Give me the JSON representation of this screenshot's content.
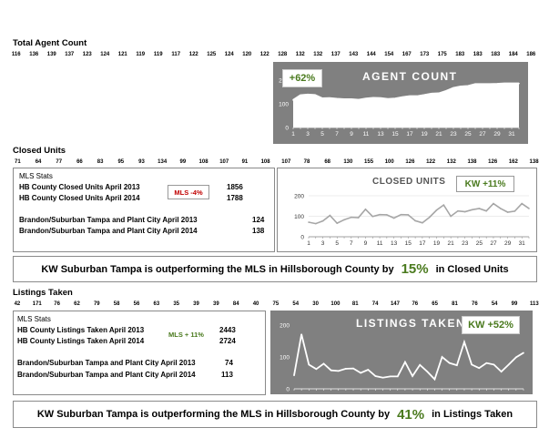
{
  "agent": {
    "title": "Total Agent Count",
    "numbers": [
      "116",
      "136",
      "139",
      "137",
      "123",
      "124",
      "121",
      "119",
      "119",
      "117",
      "122",
      "125",
      "124",
      "120",
      "122",
      "128",
      "132",
      "132",
      "137",
      "143",
      "144",
      "154",
      "167",
      "173",
      "175",
      "183",
      "183",
      "183",
      "184",
      "186"
    ]
  },
  "closed": {
    "title": "Closed Units",
    "numbers": [
      "71",
      "64",
      "77",
      "66",
      "83",
      "95",
      "93",
      "134",
      "99",
      "108",
      "107",
      "91",
      "108",
      "107",
      "78",
      "68",
      "130",
      "155",
      "100",
      "126",
      "122",
      "132",
      "138",
      "126",
      "162",
      "138"
    ],
    "stats_header": "MLS Stats",
    "row1_label": "HB County Closed Units  April 2013",
    "row1_value": "1856",
    "row2_label": "HB County Closed Units  April 2014",
    "row2_value": "1788",
    "mls_badge": "MLS -4%",
    "row3_label": "Brandon/Suburban Tampa and Plant City April 2013",
    "row3_value": "124",
    "row4_label": "Brandon/Suburban Tampa and Plant City April 2014",
    "row4_value": "138",
    "banner_pre": "KW Suburban Tampa is outperforming the MLS in Hillsborough County by",
    "banner_pct": "15%",
    "banner_post": "in Closed Units"
  },
  "listings": {
    "title": "Listings Taken",
    "numbers": [
      "42",
      "171",
      "76",
      "62",
      "79",
      "58",
      "56",
      "63",
      "35",
      "39",
      "39",
      "84",
      "40",
      "75",
      "54",
      "30",
      "100",
      "81",
      "74",
      "147",
      "76",
      "65",
      "81",
      "76",
      "54",
      "99",
      "113"
    ],
    "stats_header": "MLS Stats",
    "row1_label": "HB County Listings Taken April 2013",
    "row1_value": "2443",
    "row2_label": "HB County Listings Taken April 2014",
    "row2_value": "2724",
    "mls_badge": "MLS + 11%",
    "row3_label": "Brandon/Suburban Tampa and Plant City April 2013",
    "row3_value": "74",
    "row4_label": "Brandon/Suburban Tampa and Plant City April 2014",
    "row4_value": "113",
    "banner_pre": "KW Suburban Tampa is outperforming the MLS in Hillsborough County by",
    "banner_pct": "41%",
    "banner_post": "in Listings Taken"
  },
  "colors": {
    "chart_bg": "#808080",
    "line": "#ffffff",
    "closed_line": "#a6a6a6",
    "accent_green": "#4a7a1e",
    "badge_red": "#c00000"
  },
  "chart_data": [
    {
      "type": "area",
      "title": "AGENT COUNT",
      "badge": "+62%",
      "x": [
        1,
        2,
        3,
        4,
        5,
        6,
        7,
        8,
        9,
        10,
        11,
        12,
        13,
        14,
        15,
        16,
        17,
        18,
        19,
        20,
        21,
        22,
        23,
        24,
        25,
        26,
        27,
        28,
        29,
        30,
        31,
        32
      ],
      "x_ticks": [
        "1",
        "3",
        "5",
        "7",
        "9",
        "11",
        "13",
        "15",
        "17",
        "19",
        "21",
        "23",
        "25",
        "27",
        "29",
        "31"
      ],
      "y_ticks": [
        "0",
        "100",
        "200"
      ],
      "ylim": [
        0,
        200
      ],
      "series": [
        {
          "values": [
            116,
            136,
            139,
            137,
            123,
            124,
            121,
            119,
            119,
            117,
            122,
            125,
            124,
            120,
            122,
            128,
            132,
            132,
            137,
            143,
            144,
            154,
            167,
            173,
            175,
            183,
            183,
            183,
            184,
            186,
            186,
            186
          ]
        }
      ]
    },
    {
      "type": "line",
      "title": "CLOSED UNITS",
      "badge": "KW +11%",
      "x": [
        1,
        2,
        3,
        4,
        5,
        6,
        7,
        8,
        9,
        10,
        11,
        12,
        13,
        14,
        15,
        16,
        17,
        18,
        19,
        20,
        21,
        22,
        23,
        24,
        25,
        26,
        27,
        28,
        29,
        30,
        31,
        32
      ],
      "x_ticks": [
        "1",
        "3",
        "5",
        "7",
        "9",
        "11",
        "13",
        "15",
        "17",
        "19",
        "21",
        "23",
        "25",
        "27",
        "29",
        "31"
      ],
      "y_ticks": [
        "0",
        "100",
        "200"
      ],
      "ylim": [
        0,
        200
      ],
      "grid": true,
      "series": [
        {
          "values": [
            71,
            64,
            77,
            104,
            66,
            83,
            95,
            93,
            134,
            99,
            108,
            107,
            91,
            108,
            107,
            78,
            68,
            95,
            130,
            155,
            100,
            126,
            122,
            132,
            138,
            126,
            162,
            138,
            120,
            125,
            162,
            138
          ]
        }
      ]
    },
    {
      "type": "line",
      "title": "LISTINGS TAKEN",
      "badge": "KW  +52%",
      "x": [
        1,
        2,
        3,
        4,
        5,
        6,
        7,
        8,
        9,
        10,
        11,
        12,
        13,
        14,
        15,
        16,
        17,
        18,
        19,
        20,
        21,
        22,
        23,
        24,
        25,
        26,
        27,
        28,
        29,
        30,
        31,
        32
      ],
      "y_ticks": [
        "0",
        "100",
        "200"
      ],
      "ylim": [
        0,
        200
      ],
      "series": [
        {
          "values": [
            42,
            171,
            76,
            62,
            79,
            58,
            56,
            63,
            64,
            50,
            60,
            40,
            35,
            39,
            39,
            84,
            40,
            75,
            54,
            30,
            100,
            81,
            74,
            147,
            76,
            65,
            81,
            76,
            54,
            76,
            99,
            113
          ]
        }
      ]
    }
  ]
}
